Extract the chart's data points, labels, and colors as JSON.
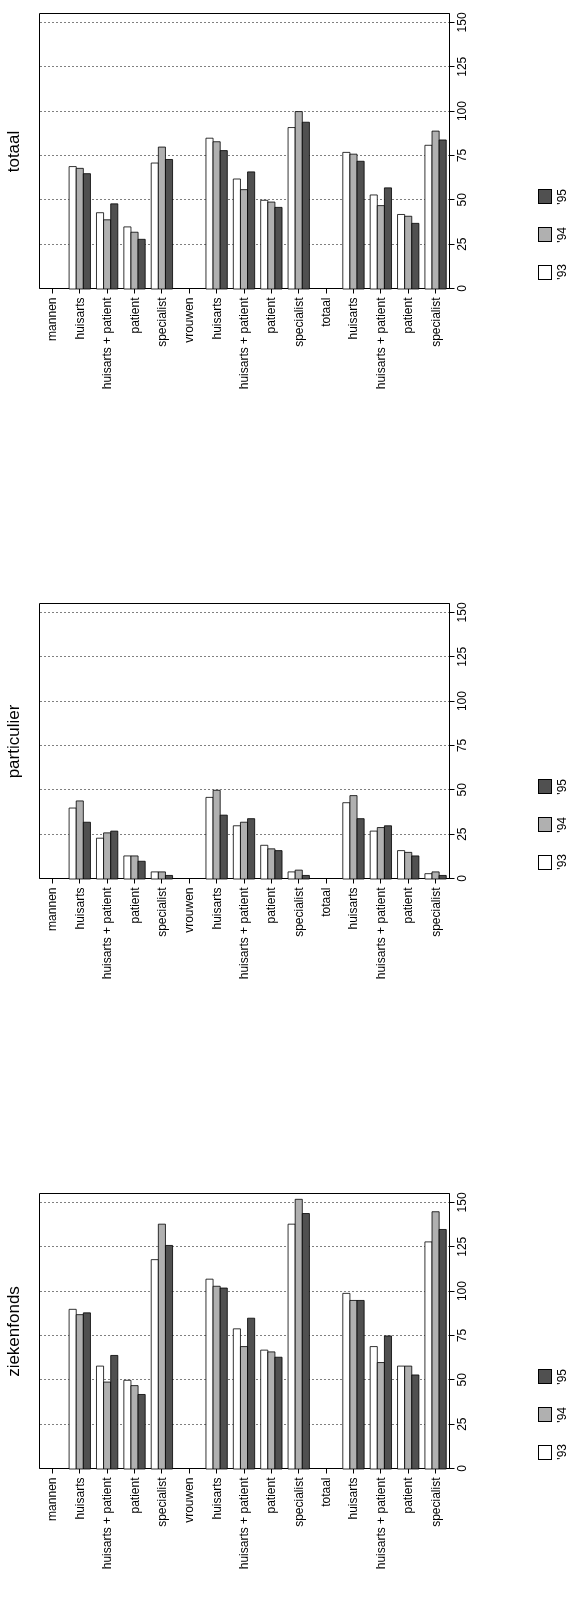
{
  "chart_data": [
    {
      "type": "bar",
      "title": "totaal",
      "categories": [
        "mannen",
        "huisarts",
        "huisarts + patient",
        "patient",
        "specialist",
        "vrouwen",
        "huisarts",
        "huisarts + patient",
        "patient",
        "specialist",
        "totaal",
        "huisarts",
        "huisarts + patient",
        "patient",
        "specialist"
      ],
      "series": [
        {
          "name": "'93",
          "color": "#ffffff",
          "values": [
            null,
            69,
            43,
            35,
            71,
            null,
            85,
            62,
            50,
            91,
            null,
            77,
            53,
            42,
            81
          ]
        },
        {
          "name": "'94",
          "color": "#b0b0b0",
          "values": [
            null,
            68,
            39,
            32,
            80,
            null,
            83,
            56,
            49,
            100,
            null,
            76,
            47,
            41,
            89
          ]
        },
        {
          "name": "'95",
          "color": "#505050",
          "values": [
            null,
            65,
            48,
            28,
            73,
            null,
            78,
            66,
            46,
            94,
            null,
            72,
            57,
            37,
            84
          ]
        }
      ],
      "ylim": [
        0,
        155
      ],
      "yticks": [
        0,
        25,
        50,
        75,
        100,
        125,
        150
      ],
      "grid": "y",
      "legend": "right"
    },
    {
      "type": "bar",
      "title": "particulier",
      "categories": [
        "mannen",
        "huisarts",
        "huisarts + patient",
        "patient",
        "specialist",
        "vrouwen",
        "huisarts",
        "huisarts + patient",
        "patient",
        "specialist",
        "totaal",
        "huisarts",
        "huisarts + patient",
        "patient",
        "specialist"
      ],
      "series": [
        {
          "name": "'93",
          "color": "#ffffff",
          "values": [
            null,
            40,
            23,
            13,
            4,
            null,
            46,
            30,
            19,
            4,
            null,
            43,
            27,
            16,
            3
          ]
        },
        {
          "name": "'94",
          "color": "#b0b0b0",
          "values": [
            null,
            44,
            26,
            13,
            4,
            null,
            50,
            32,
            17,
            5,
            null,
            47,
            29,
            15,
            4
          ]
        },
        {
          "name": "'95",
          "color": "#505050",
          "values": [
            null,
            32,
            27,
            10,
            2,
            null,
            36,
            34,
            16,
            2,
            null,
            34,
            30,
            13,
            2
          ]
        }
      ],
      "ylim": [
        0,
        155
      ],
      "yticks": [
        0,
        25,
        50,
        75,
        100,
        125,
        150
      ],
      "grid": "y",
      "legend": "right"
    },
    {
      "type": "bar",
      "title": "ziekenfonds",
      "categories": [
        "mannen",
        "huisarts",
        "huisarts + patient",
        "patient",
        "specialist",
        "vrouwen",
        "huisarts",
        "huisarts + patient",
        "patient",
        "specialist",
        "totaal",
        "huisarts",
        "huisarts + patient",
        "patient",
        "specialist"
      ],
      "series": [
        {
          "name": "'93",
          "color": "#ffffff",
          "values": [
            null,
            90,
            58,
            50,
            118,
            null,
            107,
            79,
            67,
            138,
            null,
            99,
            69,
            58,
            128
          ]
        },
        {
          "name": "'94",
          "color": "#b0b0b0",
          "values": [
            null,
            87,
            49,
            47,
            138,
            null,
            103,
            69,
            66,
            152,
            null,
            95,
            60,
            58,
            145
          ]
        },
        {
          "name": "'95",
          "color": "#505050",
          "values": [
            null,
            88,
            64,
            42,
            126,
            null,
            102,
            85,
            63,
            144,
            null,
            95,
            75,
            53,
            135
          ]
        }
      ],
      "ylim": [
        0,
        155
      ],
      "yticks": [
        0,
        25,
        50,
        75,
        100,
        125,
        150
      ],
      "grid": "y",
      "legend": "right"
    }
  ]
}
